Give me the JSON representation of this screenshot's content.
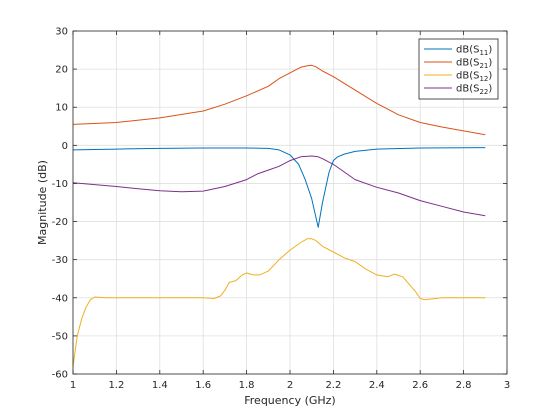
{
  "chart_data": {
    "type": "line",
    "title": "",
    "xlabel": "Frequency (GHz)",
    "ylabel": "Magnitude (dB)",
    "xlim": [
      1,
      3
    ],
    "ylim": [
      -60,
      30
    ],
    "xticks": [
      1,
      1.2,
      1.4,
      1.6,
      1.8,
      2,
      2.2,
      2.4,
      2.6,
      2.8,
      3
    ],
    "xtick_labels": [
      "1",
      "1.2",
      "1.4",
      "1.6",
      "1.8",
      "2",
      "2.2",
      "2.4",
      "2.6",
      "2.8",
      "3"
    ],
    "yticks": [
      -60,
      -50,
      -40,
      -30,
      -20,
      -10,
      0,
      10,
      20,
      30
    ],
    "ytick_labels": [
      "-60",
      "-50",
      "-40",
      "-30",
      "-20",
      "-10",
      "0",
      "10",
      "20",
      "30"
    ],
    "grid": true,
    "legend_position": "top-right",
    "series": [
      {
        "name": "dB(S11)",
        "name_main": "dB(S",
        "name_sub": "11",
        "name_close": ")",
        "color": "#0072BD",
        "x": [
          1.0,
          1.2,
          1.4,
          1.6,
          1.8,
          1.9,
          1.95,
          2.0,
          2.04,
          2.07,
          2.1,
          2.12,
          2.13,
          2.15,
          2.18,
          2.2,
          2.22,
          2.25,
          2.3,
          2.4,
          2.6,
          2.9
        ],
        "y": [
          -1.2,
          -1.0,
          -0.8,
          -0.7,
          -0.7,
          -0.8,
          -1.2,
          -2.5,
          -5.0,
          -9.0,
          -14.0,
          -19.0,
          -21.5,
          -15.0,
          -7.0,
          -4.0,
          -3.0,
          -2.3,
          -1.6,
          -1.0,
          -0.7,
          -0.6
        ]
      },
      {
        "name": "dB(S21)",
        "name_main": "dB(S",
        "name_sub": "21",
        "name_close": ")",
        "color": "#D95319",
        "x": [
          1.0,
          1.2,
          1.4,
          1.6,
          1.7,
          1.8,
          1.9,
          1.95,
          2.0,
          2.05,
          2.08,
          2.1,
          2.12,
          2.15,
          2.2,
          2.3,
          2.4,
          2.5,
          2.6,
          2.7,
          2.8,
          2.9
        ],
        "y": [
          5.5,
          6.0,
          7.2,
          9.0,
          10.8,
          13.0,
          15.5,
          17.5,
          19.0,
          20.5,
          20.9,
          21.0,
          20.6,
          19.5,
          18.0,
          14.5,
          11.0,
          8.0,
          6.0,
          4.8,
          3.8,
          2.8
        ]
      },
      {
        "name": "dB(S12)",
        "name_main": "dB(S",
        "name_sub": "12",
        "name_close": ")",
        "color": "#EDB120",
        "x": [
          1.0,
          1.02,
          1.04,
          1.06,
          1.08,
          1.1,
          1.15,
          1.2,
          1.4,
          1.6,
          1.65,
          1.68,
          1.7,
          1.72,
          1.75,
          1.78,
          1.8,
          1.83,
          1.86,
          1.9,
          1.95,
          2.0,
          2.05,
          2.08,
          2.1,
          2.12,
          2.15,
          2.2,
          2.25,
          2.3,
          2.35,
          2.4,
          2.45,
          2.48,
          2.52,
          2.55,
          2.58,
          2.6,
          2.62,
          2.7,
          2.8,
          2.9
        ],
        "y": [
          -58.0,
          -50.0,
          -45.5,
          -42.5,
          -40.5,
          -39.8,
          -40.0,
          -40.0,
          -40.0,
          -40.0,
          -40.2,
          -39.5,
          -38.0,
          -36.0,
          -35.5,
          -34.0,
          -33.5,
          -34.0,
          -34.0,
          -33.0,
          -30.0,
          -27.5,
          -25.5,
          -24.5,
          -24.5,
          -25.0,
          -26.5,
          -28.0,
          -29.5,
          -30.5,
          -32.5,
          -34.0,
          -34.5,
          -33.8,
          -34.5,
          -36.5,
          -38.5,
          -40.2,
          -40.5,
          -40.0,
          -40.0,
          -40.0
        ]
      },
      {
        "name": "dB(S22)",
        "name_main": "dB(S",
        "name_sub": "22",
        "name_close": ")",
        "color": "#7E2F8E",
        "x": [
          1.0,
          1.1,
          1.2,
          1.3,
          1.4,
          1.5,
          1.6,
          1.7,
          1.8,
          1.85,
          1.9,
          1.95,
          2.0,
          2.05,
          2.1,
          2.13,
          2.15,
          2.2,
          2.25,
          2.3,
          2.4,
          2.5,
          2.6,
          2.7,
          2.8,
          2.9
        ],
        "y": [
          -9.8,
          -10.3,
          -10.8,
          -11.4,
          -11.9,
          -12.2,
          -12.0,
          -10.8,
          -9.0,
          -7.5,
          -6.5,
          -5.5,
          -4.0,
          -3.0,
          -2.8,
          -3.0,
          -3.5,
          -5.0,
          -7.0,
          -9.0,
          -11.0,
          -12.5,
          -14.5,
          -16.0,
          -17.5,
          -18.5
        ]
      }
    ]
  }
}
